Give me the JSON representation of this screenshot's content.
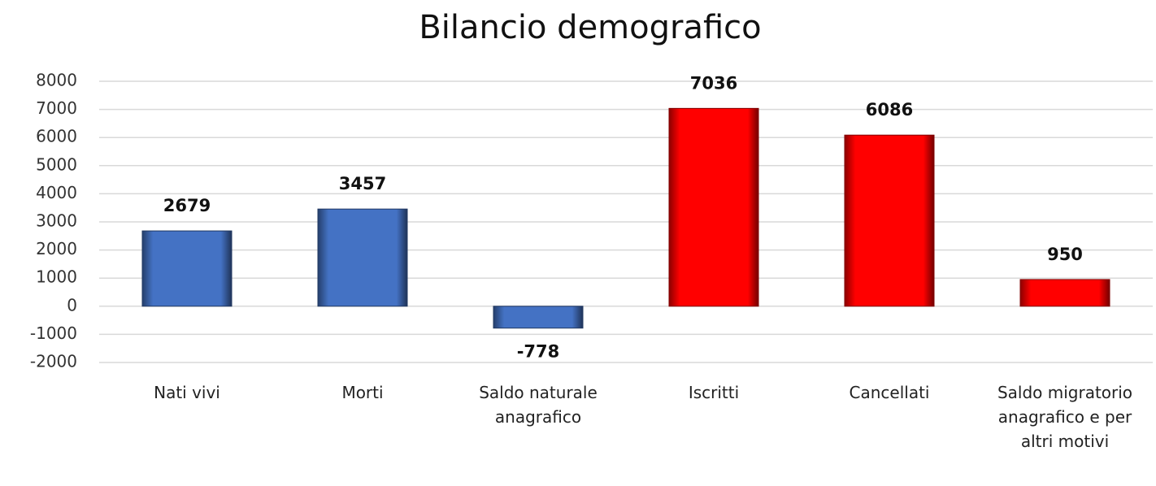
{
  "chart_data": {
    "type": "bar",
    "title": "Bilancio demografico",
    "categories": [
      "Nati vivi",
      "Morti",
      "Saldo naturale anagrafico",
      "Iscritti",
      "Cancellati",
      "Saldo migratorio anagrafico e per altri motivi"
    ],
    "values": [
      2679,
      3457,
      -778,
      7036,
      6086,
      950
    ],
    "colors": [
      "#4472c4",
      "#4472c4",
      "#4472c4",
      "#ff0000",
      "#ff0000",
      "#ff0000"
    ],
    "ylim": [
      -2000,
      8000
    ],
    "yticks": [
      -2000,
      -1000,
      0,
      1000,
      2000,
      3000,
      4000,
      5000,
      6000,
      7000,
      8000
    ],
    "grid": true
  }
}
